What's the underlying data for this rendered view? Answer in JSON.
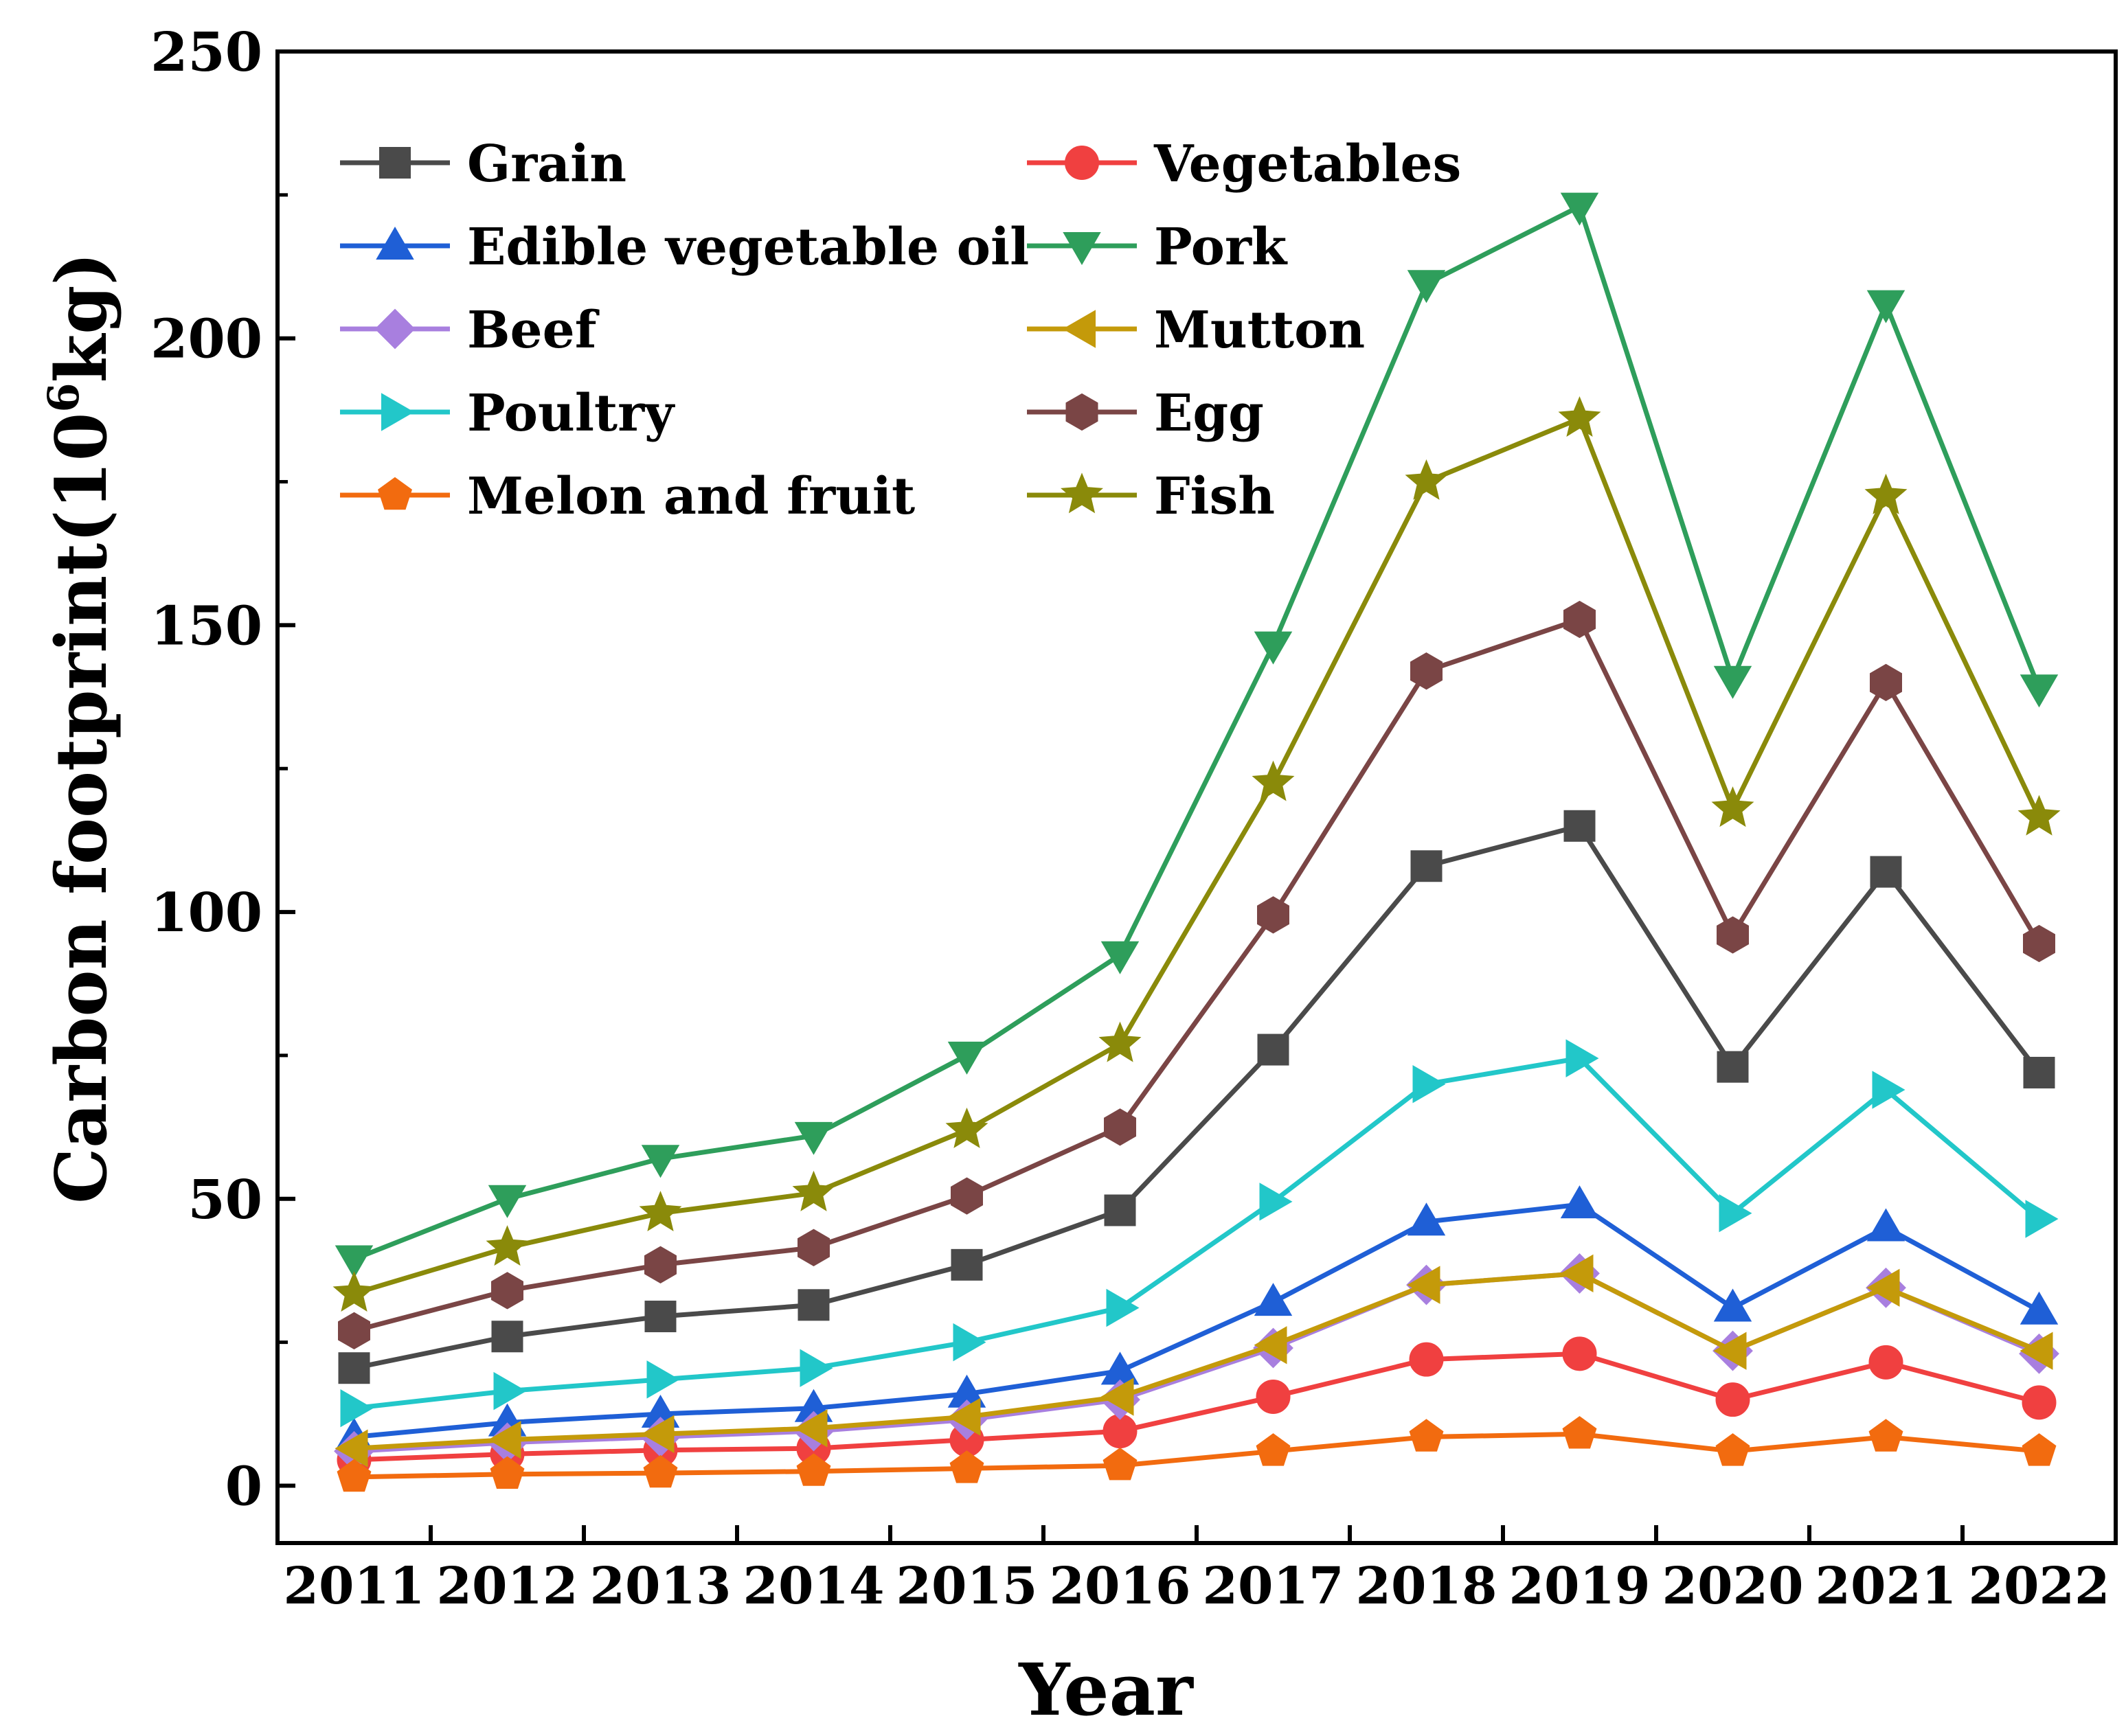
{
  "chart_data": {
    "type": "line",
    "title": "",
    "xlabel": "Year",
    "ylabel": "Carbon footprint(10",
    "ylabel_sup": "6",
    "ylabel_unit": "kg)",
    "ylim": [
      -10,
      250
    ],
    "yticks": [
      0,
      50,
      100,
      150,
      200,
      250
    ],
    "yticks_labels": [
      "0",
      "50",
      "100",
      "150",
      "200",
      "250"
    ],
    "categories": [
      "2011",
      "2012",
      "2013",
      "2014",
      "2015",
      "2016",
      "2017",
      "2018",
      "2019",
      "2020",
      "2021",
      "2022"
    ],
    "grid": false,
    "legend_position": "top-left",
    "series": [
      {
        "name": "Grain",
        "color": "#4a4a4a",
        "marker": "square",
        "values": [
          20.5,
          26,
          29.5,
          31.5,
          38.5,
          48,
          76,
          108,
          115,
          73,
          107,
          72
        ]
      },
      {
        "name": "Vegetables",
        "color": "#f04040",
        "marker": "circle",
        "values": [
          4.5,
          5.5,
          6.2,
          6.5,
          8,
          9.5,
          15.5,
          22,
          23,
          15,
          21.5,
          14.5
        ]
      },
      {
        "name": "Edible vegetable oil",
        "color": "#1f5fd6",
        "marker": "triangle-up",
        "values": [
          8.5,
          11,
          12.5,
          13.5,
          16,
          20,
          32,
          46,
          49,
          31,
          45,
          30.5
        ]
      },
      {
        "name": "Pork",
        "color": "#2e9e5b",
        "marker": "triangle-down",
        "values": [
          39.5,
          50,
          57,
          61,
          75,
          92.5,
          146.5,
          209.5,
          223,
          140.5,
          206,
          139
        ]
      },
      {
        "name": "Beef",
        "color": "#a87fdf",
        "marker": "diamond",
        "values": [
          6,
          7.5,
          8.5,
          9.5,
          11.5,
          15,
          24,
          35,
          37,
          23.5,
          34.5,
          23
        ]
      },
      {
        "name": "Mutton",
        "color": "#c49a0a",
        "marker": "triangle-left",
        "values": [
          6.5,
          8,
          9,
          10,
          12,
          15.5,
          24.5,
          35,
          37,
          23.5,
          34.5,
          23.5
        ]
      },
      {
        "name": "Poultry",
        "color": "#22c7c9",
        "marker": "triangle-right",
        "values": [
          13.5,
          16.5,
          18.5,
          20.5,
          25,
          31,
          49.5,
          70,
          74.5,
          47.5,
          69,
          46.5
        ]
      },
      {
        "name": "Egg",
        "color": "#7a4545",
        "marker": "hexagon",
        "values": [
          27,
          34,
          38.5,
          41.5,
          50.5,
          62.5,
          99.5,
          142,
          151,
          96,
          140,
          94.5
        ]
      },
      {
        "name": "Melon and fruit",
        "color": "#f26b0f",
        "marker": "pentagon",
        "values": [
          1.5,
          2,
          2.2,
          2.5,
          3,
          3.5,
          6,
          8.5,
          9,
          6,
          8.5,
          6
        ]
      },
      {
        "name": "Fish",
        "color": "#8a8a0a",
        "marker": "star",
        "values": [
          33.5,
          41.5,
          47.5,
          51,
          62,
          77,
          122.5,
          175,
          186,
          118,
          172.5,
          116.5
        ]
      }
    ]
  }
}
